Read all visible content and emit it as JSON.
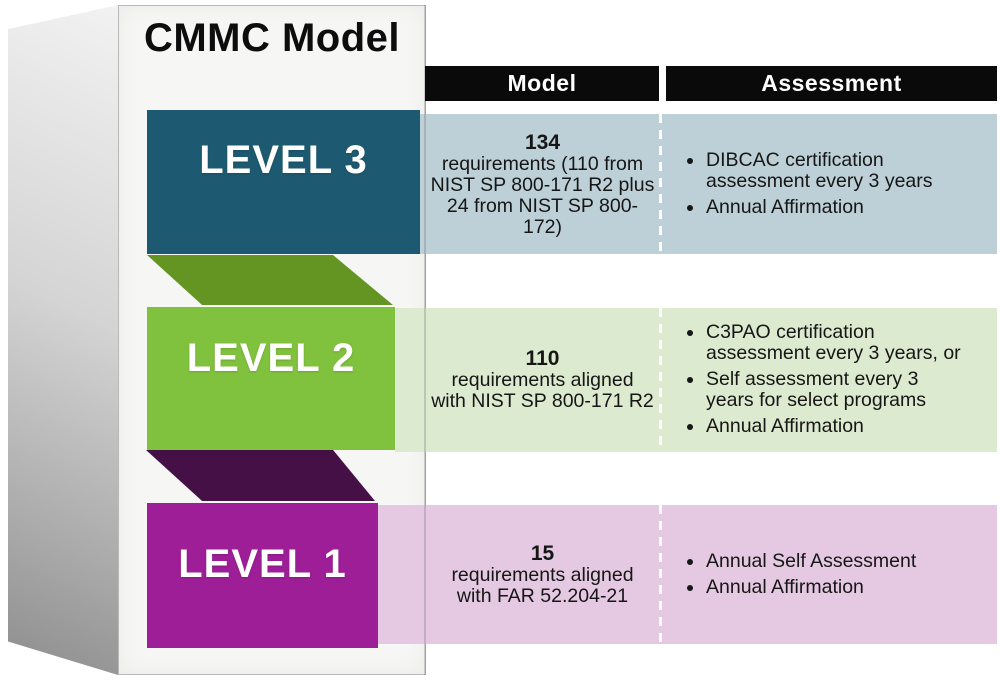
{
  "figure": {
    "title": "CMMC Model",
    "colors": {
      "level3_block": "#1d5a71",
      "level2_block": "#80c13d",
      "level1_block": "#9e1e98",
      "fold_green": "#649523",
      "fold_purple": "#451045",
      "row3_bg": "#bdcfd7",
      "row2_bg": "#dcead0",
      "row1_bg": "#e5c9e2",
      "header_bg": "#0a0a0a"
    }
  },
  "headers": {
    "model": "Model",
    "assessment": "Assessment"
  },
  "rows": [
    {
      "level_label": "LEVEL 3",
      "model_number": "134",
      "model_text": "requirements (110 from\nNIST SP 800-171 R2 plus\n24 from NIST SP 800-\n172)",
      "assessment_items": [
        "DIBCAC certification\nassessment every 3 years",
        "Annual Affirmation"
      ]
    },
    {
      "level_label": "LEVEL 2",
      "model_number": "110",
      "model_text": "requirements aligned\nwith NIST SP 800-171 R2",
      "assessment_items": [
        "C3PAO certification\nassessment every 3 years, or",
        "Self assessment every 3\nyears for select programs",
        "Annual Affirmation"
      ]
    },
    {
      "level_label": "LEVEL 1",
      "model_number": "15",
      "model_text": "requirements aligned\nwith FAR 52.204-21",
      "assessment_items": [
        "Annual Self Assessment",
        "Annual Affirmation"
      ]
    }
  ]
}
